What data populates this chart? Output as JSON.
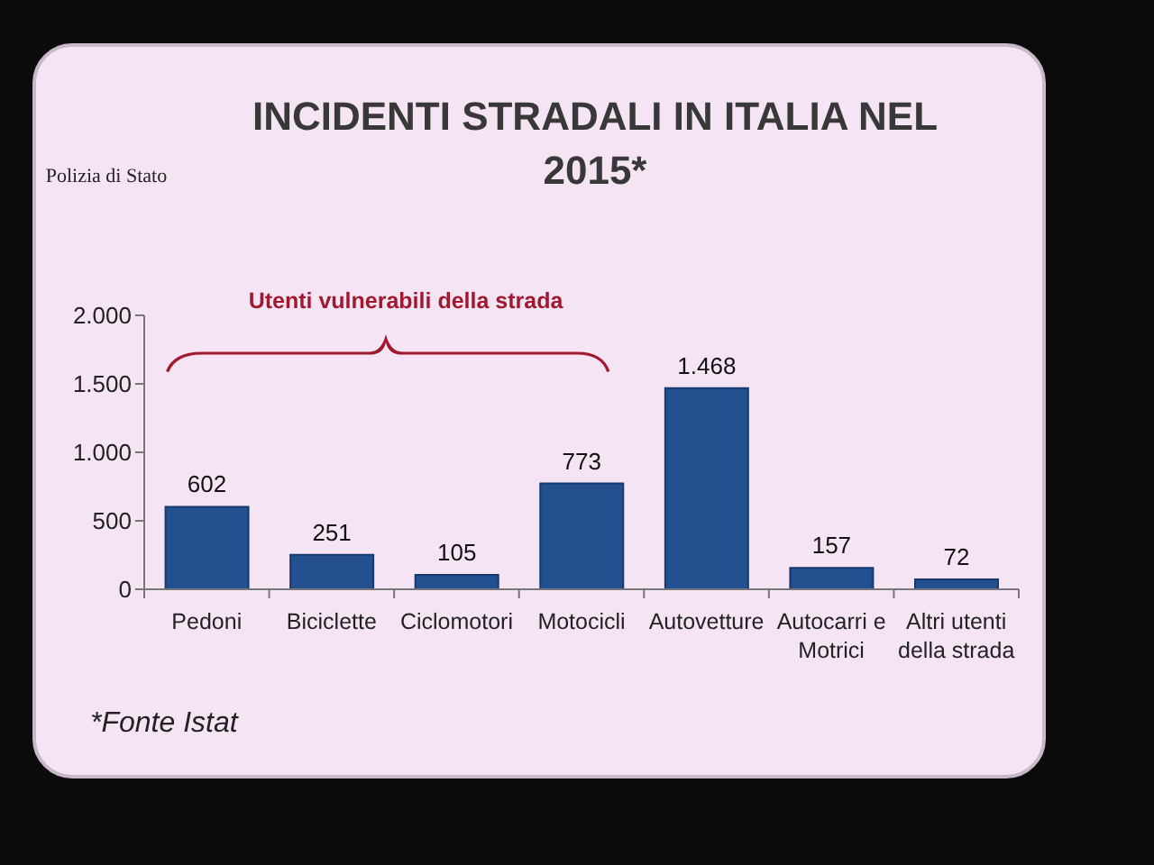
{
  "chart_data": {
    "type": "bar",
    "title": "INCIDENTI STRADALI IN ITALIA NEL 2015*",
    "categories": [
      "Pedoni",
      "Biciclette",
      "Ciclomotori",
      "Motocicli",
      "Autovetture",
      "Autocarri e Motrici",
      "Altri utenti della strada"
    ],
    "values": [
      602,
      251,
      105,
      773,
      1468,
      157,
      72
    ],
    "value_labels": [
      "602",
      "251",
      "105",
      "773",
      "1.468",
      "157",
      "72"
    ],
    "color": "#23508f",
    "ylim": [
      0,
      2000
    ],
    "yticks": [
      0,
      500,
      {
        "value": 1000,
        "label": "1.000"
      },
      {
        "value": 1500,
        "label": "1.500"
      },
      {
        "value": 2000,
        "label": "2.000"
      }
    ],
    "annotations": [
      "Polizia di Stato",
      "Utenti vulnerabili della strada",
      "*Fonte Istat"
    ]
  }
}
